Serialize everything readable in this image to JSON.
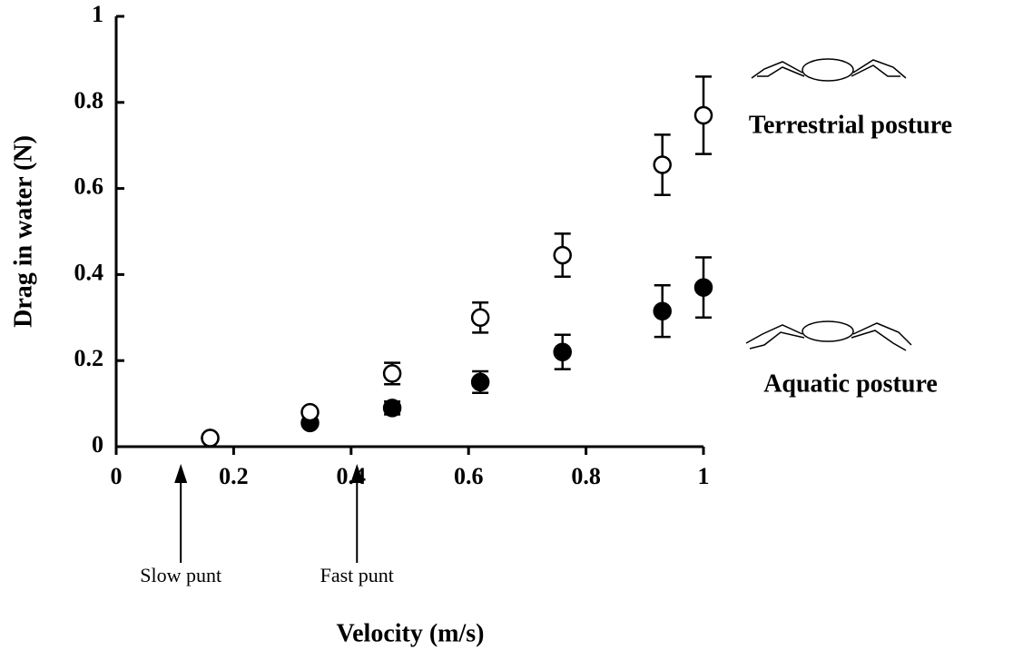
{
  "chart_data": {
    "type": "scatter",
    "x_label": "Velocity (m/s)",
    "y_label": "Drag in water (N)",
    "x": [
      0.16,
      0.33,
      0.47,
      0.62,
      0.76,
      0.93,
      1.0
    ],
    "series": [
      {
        "name": "Terrestrial posture",
        "color": "#ffffff",
        "values": [
          0.02,
          0.08,
          0.17,
          0.3,
          0.445,
          0.655,
          0.77
        ],
        "errors": [
          0,
          0,
          0.025,
          0.035,
          0.05,
          0.07,
          0.09
        ]
      },
      {
        "name": "Aquatic posture",
        "color": "#000000",
        "values": [
          0.02,
          0.055,
          0.09,
          0.15,
          0.22,
          0.315,
          0.37
        ],
        "errors": [
          0,
          0,
          0.015,
          0.025,
          0.04,
          0.06,
          0.07
        ]
      }
    ],
    "xlim": [
      0,
      1
    ],
    "ylim": [
      0,
      1
    ],
    "xticks": [
      0,
      0.2,
      0.4,
      0.6,
      0.8,
      1
    ],
    "yticks": [
      0,
      0.2,
      0.4,
      0.6,
      0.8,
      1
    ],
    "annotations": [
      {
        "text": "Slow punt",
        "x": 0.11
      },
      {
        "text": "Fast punt",
        "x": 0.41
      }
    ]
  }
}
